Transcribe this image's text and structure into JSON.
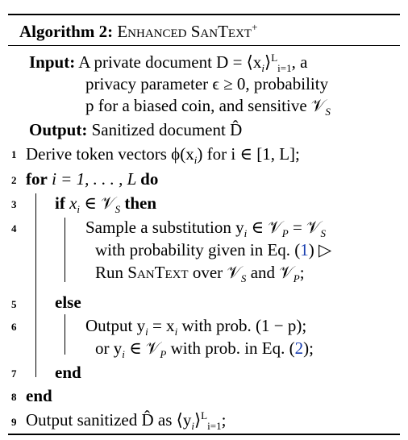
{
  "title": {
    "label": "Algorithm 2:",
    "name": "Enhanced SanText",
    "sup": "+"
  },
  "input": {
    "label": "Input:",
    "line1": "A private document D = ⟨x",
    "line1_tail": ", a",
    "line2": "privacy parameter ϵ ≥ 0, probability",
    "line3": "p for a biased coin, and sensitive 𝒱",
    "sub_s": "S",
    "sub_L": "L",
    "sub_i1": "i=1"
  },
  "output": {
    "label": "Output:",
    "text": "Sanitized document D̂"
  },
  "lines": [
    {
      "n": "1",
      "text": "Derive token vectors ϕ(x",
      "tail": ") for i ∈ [1, L];"
    },
    {
      "n": "2",
      "kw": "for",
      "text": " i = 1, . . . , L ",
      "kw2": "do"
    },
    {
      "n": "3",
      "kw": "if",
      "text": " x",
      "tail": " ∈ 𝒱",
      "kw2": "then"
    },
    {
      "n": "4",
      "text": "Sample a substitution y",
      "tail": " ∈ 𝒱",
      "tail2": " = 𝒱"
    },
    {
      "n": "",
      "text": "with probability given in Eq. (",
      "ref": "1",
      "tail": ")  ▷"
    },
    {
      "n": "",
      "text": "Run ",
      "sc": "SanText",
      "tail": " over 𝒱",
      "tail2": " and 𝒱",
      "end": ";"
    },
    {
      "n": "5",
      "kw": "else"
    },
    {
      "n": "6",
      "text": "Output y",
      "tail": " = x",
      "tail2": " with prob. (1 − p);"
    },
    {
      "n": "",
      "text": "or y",
      "tail": " ∈ 𝒱",
      "tail2": " with prob. in Eq. (",
      "ref": "2",
      "end": ");"
    },
    {
      "n": "7",
      "kw": "end"
    },
    {
      "n": "8",
      "kw": "end"
    },
    {
      "n": "9",
      "text": "Output sanitized D̂ as ⟨y",
      "tail": "⟩",
      "sub_L": "L",
      "sub_i1": "i=1",
      "end": ";"
    }
  ]
}
